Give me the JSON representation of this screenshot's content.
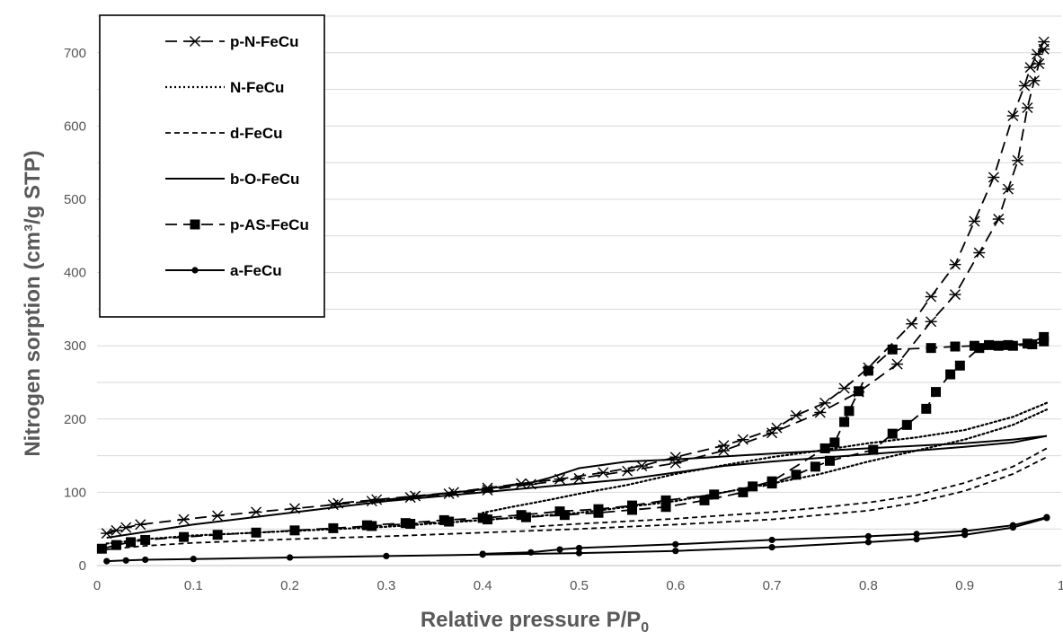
{
  "chart_data": {
    "type": "line",
    "xlabel": "Relative pressure P/P",
    "xlabel_subscript": "0",
    "ylabel": "Nitrogen sorption (cm³/g STP)",
    "xlim": [
      0,
      1
    ],
    "ylim": [
      0,
      750
    ],
    "x_ticks": [
      "0",
      "0.1",
      "0.2",
      "0.3",
      "0.4",
      "0.5",
      "0.6",
      "0.7",
      "0.8",
      "0.9",
      "1"
    ],
    "y_ticks": [
      "0",
      "100",
      "200",
      "300",
      "400",
      "500",
      "600",
      "700"
    ],
    "grid": "horizontal",
    "legend_position": "top-left",
    "series": [
      {
        "name": "p-N-FeCu",
        "marker": "asterisk",
        "line_style": "long-dash",
        "adsorption": [
          [
            0.01,
            44
          ],
          [
            0.02,
            48
          ],
          [
            0.03,
            52
          ],
          [
            0.045,
            56
          ],
          [
            0.09,
            63
          ],
          [
            0.125,
            68
          ],
          [
            0.165,
            73
          ],
          [
            0.205,
            78
          ],
          [
            0.245,
            83
          ],
          [
            0.285,
            88
          ],
          [
            0.325,
            93
          ],
          [
            0.365,
            98
          ],
          [
            0.405,
            103
          ],
          [
            0.45,
            111
          ],
          [
            0.5,
            119
          ],
          [
            0.55,
            129
          ],
          [
            0.6,
            140
          ],
          [
            0.65,
            157
          ],
          [
            0.7,
            181
          ],
          [
            0.75,
            209
          ],
          [
            0.79,
            237
          ],
          [
            0.83,
            275
          ],
          [
            0.865,
            333
          ],
          [
            0.89,
            370
          ],
          [
            0.915,
            427
          ],
          [
            0.935,
            473
          ],
          [
            0.945,
            514
          ],
          [
            0.955,
            553
          ],
          [
            0.965,
            625
          ],
          [
            0.972,
            662
          ],
          [
            0.977,
            685
          ],
          [
            0.982,
            705
          ]
        ],
        "desorption": [
          [
            0.982,
            715
          ],
          [
            0.975,
            698
          ],
          [
            0.968,
            680
          ],
          [
            0.962,
            655
          ],
          [
            0.95,
            614
          ],
          [
            0.93,
            530
          ],
          [
            0.91,
            470
          ],
          [
            0.89,
            411
          ],
          [
            0.865,
            367
          ],
          [
            0.845,
            330
          ],
          [
            0.8,
            270
          ],
          [
            0.775,
            242
          ],
          [
            0.755,
            222
          ],
          [
            0.725,
            205
          ],
          [
            0.705,
            188
          ],
          [
            0.67,
            172
          ],
          [
            0.65,
            164
          ],
          [
            0.6,
            148
          ],
          [
            0.565,
            136
          ],
          [
            0.525,
            127
          ],
          [
            0.48,
            118
          ],
          [
            0.44,
            112
          ],
          [
            0.405,
            106
          ],
          [
            0.37,
            100
          ],
          [
            0.33,
            95
          ],
          [
            0.29,
            90
          ],
          [
            0.25,
            85
          ]
        ]
      },
      {
        "name": "N-FeCu",
        "marker": "none",
        "line_style": "dotted",
        "adsorption": [
          [
            0.01,
            30
          ],
          [
            0.05,
            36
          ],
          [
            0.1,
            41
          ],
          [
            0.2,
            47
          ],
          [
            0.3,
            53
          ],
          [
            0.4,
            62
          ],
          [
            0.5,
            72
          ],
          [
            0.6,
            88
          ],
          [
            0.7,
            112
          ],
          [
            0.75,
            125
          ],
          [
            0.8,
            142
          ],
          [
            0.85,
            157
          ],
          [
            0.9,
            172
          ],
          [
            0.95,
            192
          ],
          [
            0.985,
            213
          ]
        ],
        "desorption": [
          [
            0.985,
            222
          ],
          [
            0.95,
            203
          ],
          [
            0.9,
            185
          ],
          [
            0.85,
            175
          ],
          [
            0.8,
            167
          ],
          [
            0.75,
            157
          ],
          [
            0.7,
            148
          ],
          [
            0.65,
            137
          ],
          [
            0.6,
            125
          ],
          [
            0.55,
            110
          ],
          [
            0.5,
            98
          ],
          [
            0.47,
            90
          ],
          [
            0.43,
            80
          ],
          [
            0.4,
            72
          ]
        ]
      },
      {
        "name": "d-FeCu",
        "marker": "none",
        "line_style": "short-dash",
        "adsorption": [
          [
            0.01,
            22
          ],
          [
            0.05,
            27
          ],
          [
            0.1,
            31
          ],
          [
            0.2,
            36
          ],
          [
            0.3,
            40
          ],
          [
            0.4,
            45
          ],
          [
            0.5,
            50
          ],
          [
            0.6,
            56
          ],
          [
            0.7,
            63
          ],
          [
            0.8,
            75
          ],
          [
            0.85,
            86
          ],
          [
            0.9,
            102
          ],
          [
            0.95,
            125
          ],
          [
            0.985,
            148
          ]
        ],
        "desorption": [
          [
            0.985,
            160
          ],
          [
            0.95,
            135
          ],
          [
            0.9,
            113
          ],
          [
            0.85,
            96
          ],
          [
            0.8,
            86
          ],
          [
            0.75,
            79
          ],
          [
            0.7,
            73
          ],
          [
            0.6,
            64
          ],
          [
            0.5,
            57
          ],
          [
            0.45,
            53
          ]
        ]
      },
      {
        "name": "b-O-FeCu",
        "marker": "none",
        "line_style": "solid",
        "adsorption": [
          [
            0.01,
            38
          ],
          [
            0.05,
            46
          ],
          [
            0.1,
            56
          ],
          [
            0.2,
            72
          ],
          [
            0.3,
            88
          ],
          [
            0.4,
            100
          ],
          [
            0.5,
            112
          ],
          [
            0.55,
            118
          ],
          [
            0.6,
            127
          ],
          [
            0.65,
            136
          ],
          [
            0.7,
            142
          ],
          [
            0.8,
            152
          ],
          [
            0.9,
            162
          ],
          [
            0.95,
            168
          ],
          [
            0.985,
            177
          ]
        ],
        "desorption": [
          [
            0.985,
            177
          ],
          [
            0.95,
            172
          ],
          [
            0.9,
            167
          ],
          [
            0.8,
            160
          ],
          [
            0.7,
            153
          ],
          [
            0.6,
            145
          ],
          [
            0.55,
            142
          ],
          [
            0.5,
            133
          ],
          [
            0.47,
            120
          ],
          [
            0.45,
            113
          ],
          [
            0.4,
            104
          ],
          [
            0.3,
            90
          ]
        ]
      },
      {
        "name": "p-AS-FeCu",
        "marker": "square",
        "line_style": "long-dash",
        "adsorption": [
          [
            0.005,
            23
          ],
          [
            0.02,
            28
          ],
          [
            0.035,
            32
          ],
          [
            0.05,
            35
          ],
          [
            0.09,
            39
          ],
          [
            0.125,
            42
          ],
          [
            0.165,
            45
          ],
          [
            0.205,
            48
          ],
          [
            0.245,
            51
          ],
          [
            0.285,
            54
          ],
          [
            0.325,
            57
          ],
          [
            0.365,
            60
          ],
          [
            0.405,
            63
          ],
          [
            0.445,
            66
          ],
          [
            0.485,
            69
          ],
          [
            0.52,
            72
          ],
          [
            0.555,
            76
          ],
          [
            0.59,
            80
          ],
          [
            0.63,
            89
          ],
          [
            0.67,
            100
          ],
          [
            0.7,
            112
          ],
          [
            0.725,
            124
          ],
          [
            0.745,
            135
          ],
          [
            0.76,
            143
          ],
          [
            0.805,
            158
          ],
          [
            0.825,
            180
          ],
          [
            0.84,
            192
          ],
          [
            0.86,
            214
          ],
          [
            0.87,
            237
          ],
          [
            0.885,
            261
          ],
          [
            0.895,
            273
          ],
          [
            0.915,
            297
          ],
          [
            0.935,
            300
          ],
          [
            0.95,
            300
          ],
          [
            0.97,
            302
          ],
          [
            0.982,
            306
          ]
        ],
        "desorption": [
          [
            0.982,
            312
          ],
          [
            0.965,
            303
          ],
          [
            0.945,
            301
          ],
          [
            0.925,
            301
          ],
          [
            0.91,
            300
          ],
          [
            0.89,
            299
          ],
          [
            0.865,
            297
          ],
          [
            0.825,
            295
          ],
          [
            0.8,
            266
          ],
          [
            0.79,
            238
          ],
          [
            0.78,
            211
          ],
          [
            0.775,
            196
          ],
          [
            0.765,
            168
          ],
          [
            0.755,
            160
          ],
          [
            0.7,
            115
          ],
          [
            0.68,
            108
          ],
          [
            0.64,
            97
          ],
          [
            0.59,
            89
          ],
          [
            0.555,
            82
          ],
          [
            0.52,
            77
          ],
          [
            0.48,
            74
          ],
          [
            0.44,
            69
          ],
          [
            0.4,
            65
          ],
          [
            0.36,
            62
          ],
          [
            0.32,
            58
          ],
          [
            0.28,
            55
          ]
        ]
      },
      {
        "name": "a-FeCu",
        "marker": "circle",
        "line_style": "solid",
        "adsorption": [
          [
            0.01,
            6
          ],
          [
            0.03,
            7
          ],
          [
            0.05,
            8
          ],
          [
            0.1,
            9
          ],
          [
            0.2,
            11
          ],
          [
            0.3,
            13
          ],
          [
            0.4,
            15
          ],
          [
            0.5,
            17
          ],
          [
            0.6,
            20
          ],
          [
            0.7,
            25
          ],
          [
            0.8,
            32
          ],
          [
            0.85,
            36
          ],
          [
            0.9,
            42
          ],
          [
            0.95,
            52
          ],
          [
            0.985,
            65
          ]
        ],
        "desorption": [
          [
            0.985,
            66
          ],
          [
            0.95,
            55
          ],
          [
            0.9,
            47
          ],
          [
            0.85,
            43
          ],
          [
            0.8,
            40
          ],
          [
            0.7,
            35
          ],
          [
            0.6,
            29
          ],
          [
            0.5,
            24
          ],
          [
            0.48,
            22
          ],
          [
            0.45,
            18
          ],
          [
            0.4,
            16
          ]
        ]
      }
    ]
  }
}
